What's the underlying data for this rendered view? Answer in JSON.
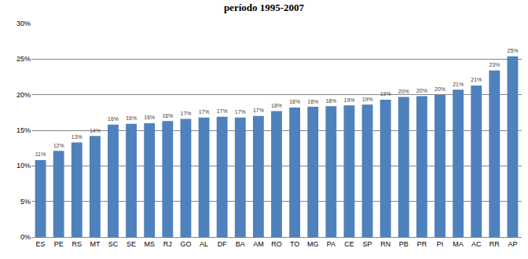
{
  "chart_data": {
    "type": "bar",
    "title": "período 1995-2007",
    "categories": [
      "ES",
      "PE",
      "RS",
      "MT",
      "SC",
      "SE",
      "MS",
      "RJ",
      "GO",
      "AL",
      "DF",
      "BA",
      "AM",
      "RO",
      "TO",
      "MG",
      "PA",
      "CE",
      "SP",
      "RN",
      "PB",
      "PR",
      "PI",
      "MA",
      "AC",
      "RR",
      "AP"
    ],
    "values": [
      10.8,
      12.1,
      13.3,
      14.2,
      15.8,
      15.9,
      16.0,
      16.3,
      16.6,
      16.8,
      16.9,
      16.8,
      17.0,
      17.7,
      18.2,
      18.3,
      18.4,
      18.5,
      18.6,
      19.3,
      19.7,
      19.8,
      20.0,
      20.7,
      21.3,
      23.4,
      25.4
    ],
    "value_labels": [
      "11%",
      "12%",
      "13%",
      "14%",
      "16%",
      "16%",
      "16%",
      "16%",
      "17%",
      "17%",
      "17%",
      "17%",
      "17%",
      "18%",
      "18%",
      "18%",
      "18%",
      "19%",
      "19%",
      "19%",
      "20%",
      "20%",
      "20%",
      "21%",
      "21%",
      "23%",
      "25%"
    ],
    "data_labels": true,
    "color": "#4f81bd",
    "ylim": [
      0,
      30
    ],
    "yticks": [
      {
        "value": 0,
        "label": "0%"
      },
      {
        "value": 5,
        "label": "5%"
      },
      {
        "value": 10,
        "label": "10%"
      },
      {
        "value": 15,
        "label": "15%"
      },
      {
        "value": 20,
        "label": "20%"
      },
      {
        "value": 25,
        "label": "25%"
      },
      {
        "value": 30,
        "label": "30%"
      }
    ],
    "grid": true
  }
}
